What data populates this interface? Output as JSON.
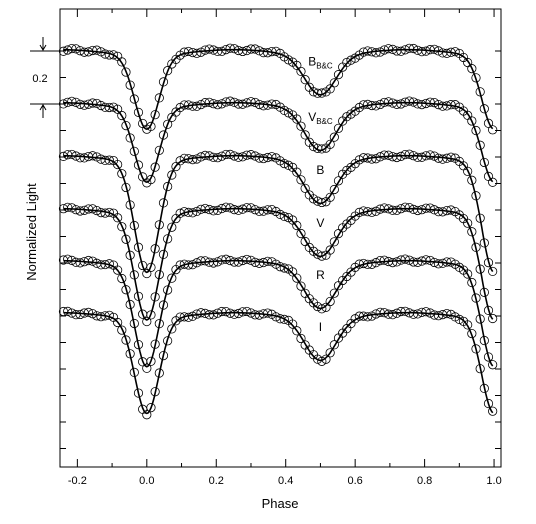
{
  "chart_data": {
    "type": "scatter",
    "xlabel": "Phase",
    "ylabel": "Normalized Light",
    "xlim": [
      -0.25,
      1.02
    ],
    "x_ticks": [
      "-0.2",
      "0.0",
      "0.2",
      "0.4",
      "0.6",
      "0.8",
      "1.0"
    ],
    "x_tick_values": [
      -0.2,
      0.0,
      0.2,
      0.4,
      0.6,
      0.8,
      1.0
    ],
    "y_tick_labels_shown": false,
    "scale_bar": {
      "label": "0.2",
      "value": 0.2
    },
    "grid": false,
    "legend": "none",
    "marker": "open-circle",
    "model_curve": "solid black line",
    "series": [
      {
        "name": "B",
        "subscript": "B&C",
        "max": 1.0,
        "primary_min": 0.72,
        "secondary_min": 0.85,
        "q1": 1.0,
        "q3": 1.0
      },
      {
        "name": "V",
        "subscript": "B&C",
        "max": 1.0,
        "primary_min": 0.72,
        "secondary_min": 0.84,
        "q1": 1.0,
        "q3": 1.0
      },
      {
        "name": "B",
        "subscript": "",
        "max": 1.0,
        "primary_min": 0.58,
        "secondary_min": 0.84,
        "q1": 1.0,
        "q3": 1.0
      },
      {
        "name": "V",
        "subscript": "",
        "max": 1.0,
        "primary_min": 0.6,
        "secondary_min": 0.84,
        "q1": 1.0,
        "q3": 1.0
      },
      {
        "name": "R",
        "subscript": "",
        "max": 1.0,
        "primary_min": 0.62,
        "secondary_min": 0.84,
        "q1": 1.0,
        "q3": 1.0
      },
      {
        "name": "I",
        "subscript": "",
        "max": 1.0,
        "primary_min": 0.64,
        "secondary_min": 0.84,
        "q1": 1.0,
        "q3": 1.0
      }
    ]
  }
}
